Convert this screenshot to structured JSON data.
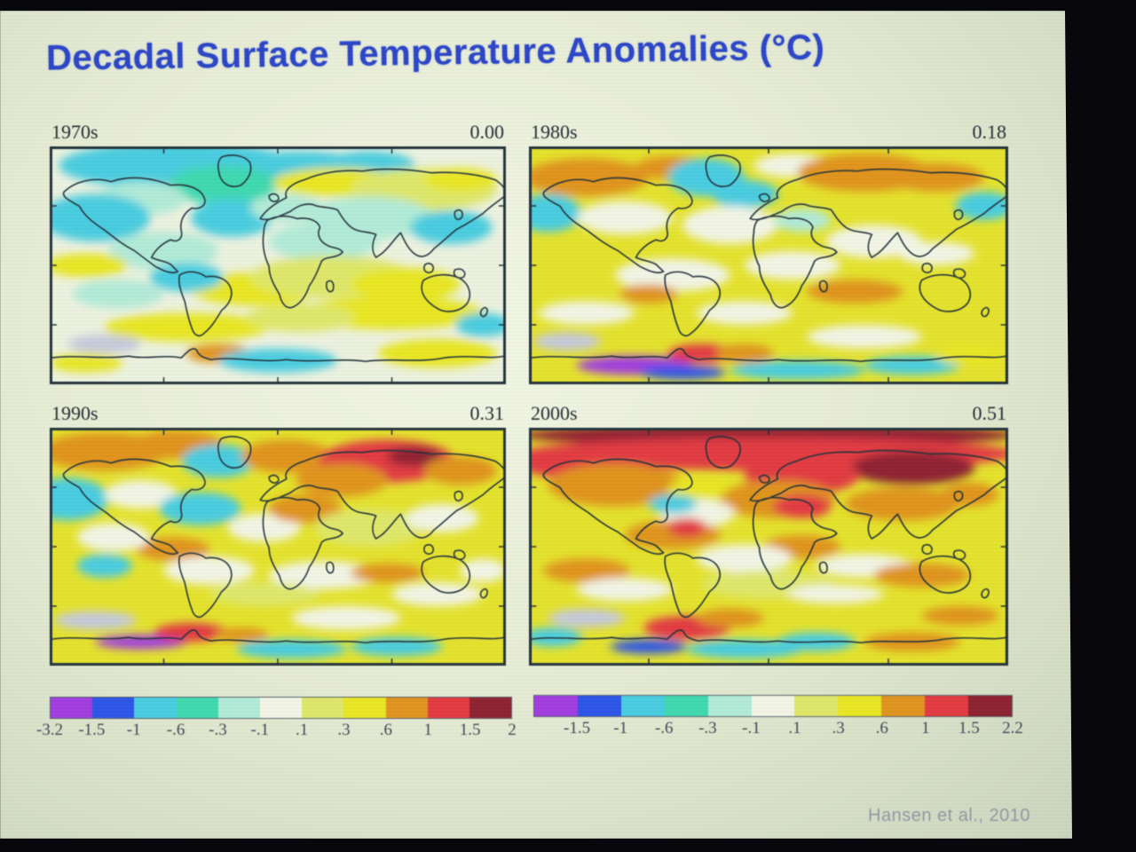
{
  "slide": {
    "title": "Decadal Surface Temperature Anomalies (°C)",
    "citation": "Hansen et al., 2010"
  },
  "chart_data": {
    "type": "heatmap",
    "title": "Decadal Surface Temperature Anomalies (°C)",
    "units": "°C",
    "annotation": "Hansen et al., 2010",
    "layout": "four equirectangular world maps in a 2x2 grid, decade label top-left and decadal-mean anomaly top-right of each map, discrete color scale bars below each column",
    "palette": {
      "purple": "#a13ce0",
      "blue": "#2d55e8",
      "cyan": "#49cde0",
      "teal": "#3fd9b0",
      "ltcyan": "#b2ecd8",
      "white": "#f3f6e6",
      "paleyellow": "#dfe86a",
      "yellow": "#e9e723",
      "orange": "#e0941f",
      "red": "#e23a42",
      "darkred": "#8e2330",
      "gray": "#c6cbdc"
    },
    "maps": [
      {
        "decade_label": "1970s",
        "mean_anomaly": "0.00",
        "base": "#eef3e0",
        "blobs": [
          [
            28,
            8,
            26,
            10,
            "cyan"
          ],
          [
            55,
            10,
            16,
            8,
            "cyan"
          ],
          [
            70,
            8,
            10,
            6,
            "cyan"
          ],
          [
            38,
            16,
            12,
            8,
            "teal"
          ],
          [
            20,
            22,
            10,
            7,
            "ltcyan"
          ],
          [
            10,
            30,
            12,
            10,
            "cyan"
          ],
          [
            40,
            30,
            9,
            8,
            "cyan"
          ],
          [
            52,
            26,
            8,
            6,
            "ltcyan"
          ],
          [
            63,
            15,
            14,
            6,
            "yellow"
          ],
          [
            82,
            18,
            16,
            9,
            "paleyellow"
          ],
          [
            90,
            14,
            8,
            5,
            "yellow"
          ],
          [
            70,
            30,
            14,
            9,
            "ltcyan"
          ],
          [
            88,
            34,
            9,
            7,
            "cyan"
          ],
          [
            60,
            40,
            12,
            8,
            "ltcyan"
          ],
          [
            25,
            44,
            12,
            8,
            "ltcyan"
          ],
          [
            8,
            50,
            9,
            5,
            "yellow"
          ],
          [
            45,
            60,
            14,
            7,
            "yellow"
          ],
          [
            62,
            55,
            18,
            9,
            "paleyellow"
          ],
          [
            78,
            58,
            12,
            7,
            "yellow"
          ],
          [
            30,
            55,
            8,
            6,
            "cyan"
          ],
          [
            15,
            62,
            10,
            6,
            "ltcyan"
          ],
          [
            75,
            70,
            20,
            7,
            "yellow"
          ],
          [
            30,
            76,
            18,
            6,
            "yellow"
          ],
          [
            55,
            72,
            12,
            6,
            "paleyellow"
          ],
          [
            12,
            83,
            8,
            4,
            "gray"
          ],
          [
            37,
            87,
            7,
            4,
            "orange"
          ],
          [
            50,
            90,
            13,
            5,
            "cyan"
          ],
          [
            85,
            87,
            13,
            6,
            "yellow"
          ],
          [
            8,
            91,
            8,
            4,
            "yellow"
          ],
          [
            95,
            75,
            6,
            5,
            "cyan"
          ]
        ]
      },
      {
        "decade_label": "1980s",
        "mean_anomaly": "0.18",
        "base": "#e5e32c",
        "blobs": [
          [
            12,
            13,
            13,
            8,
            "orange"
          ],
          [
            30,
            9,
            8,
            5,
            "orange"
          ],
          [
            37,
            13,
            8,
            8,
            "cyan"
          ],
          [
            45,
            20,
            7,
            6,
            "cyan"
          ],
          [
            55,
            8,
            8,
            5,
            "white"
          ],
          [
            70,
            11,
            14,
            8,
            "orange"
          ],
          [
            85,
            13,
            10,
            6,
            "orange"
          ],
          [
            95,
            25,
            6,
            6,
            "cyan"
          ],
          [
            4,
            28,
            7,
            8,
            "cyan"
          ],
          [
            20,
            30,
            10,
            7,
            "white"
          ],
          [
            42,
            33,
            10,
            8,
            "white"
          ],
          [
            57,
            31,
            6,
            5,
            "ltcyan"
          ],
          [
            72,
            40,
            10,
            7,
            "white"
          ],
          [
            85,
            45,
            8,
            5,
            "white"
          ],
          [
            30,
            54,
            12,
            7,
            "white"
          ],
          [
            55,
            50,
            10,
            6,
            "white"
          ],
          [
            25,
            62,
            6,
            4,
            "orange"
          ],
          [
            68,
            61,
            10,
            5,
            "orange"
          ],
          [
            12,
            70,
            10,
            5,
            "white"
          ],
          [
            45,
            70,
            10,
            5,
            "white"
          ],
          [
            8,
            82,
            7,
            4,
            "gray"
          ],
          [
            22,
            92,
            12,
            4,
            "purple"
          ],
          [
            32,
            95,
            9,
            3,
            "blue"
          ],
          [
            36,
            87,
            7,
            4,
            "red"
          ],
          [
            45,
            87,
            6,
            4,
            "orange"
          ],
          [
            56,
            94,
            14,
            4,
            "cyan"
          ],
          [
            80,
            92,
            10,
            4,
            "cyan"
          ],
          [
            70,
            80,
            12,
            5,
            "white"
          ],
          [
            92,
            88,
            7,
            4,
            "yellow"
          ]
        ]
      },
      {
        "decade_label": "1990s",
        "mean_anomaly": "0.31",
        "base": "#e5e32c",
        "blobs": [
          [
            12,
            10,
            14,
            8,
            "orange"
          ],
          [
            28,
            7,
            10,
            6,
            "orange"
          ],
          [
            37,
            14,
            8,
            7,
            "cyan"
          ],
          [
            52,
            12,
            10,
            7,
            "orange"
          ],
          [
            74,
            14,
            15,
            9,
            "red"
          ],
          [
            80,
            12,
            6,
            4,
            "darkred"
          ],
          [
            90,
            18,
            8,
            6,
            "orange"
          ],
          [
            64,
            22,
            10,
            7,
            "orange"
          ],
          [
            4,
            30,
            9,
            9,
            "cyan"
          ],
          [
            20,
            28,
            8,
            6,
            "white"
          ],
          [
            33,
            34,
            9,
            7,
            "cyan"
          ],
          [
            47,
            42,
            8,
            6,
            "white"
          ],
          [
            56,
            34,
            8,
            6,
            "orange"
          ],
          [
            70,
            42,
            12,
            8,
            "paleyellow"
          ],
          [
            86,
            38,
            8,
            6,
            "white"
          ],
          [
            27,
            51,
            8,
            5,
            "orange"
          ],
          [
            14,
            46,
            8,
            6,
            "white"
          ],
          [
            35,
            60,
            10,
            6,
            "white"
          ],
          [
            60,
            62,
            12,
            6,
            "white"
          ],
          [
            74,
            61,
            8,
            4,
            "orange"
          ],
          [
            12,
            58,
            6,
            5,
            "cyan"
          ],
          [
            47,
            70,
            12,
            5,
            "paleyellow"
          ],
          [
            85,
            70,
            10,
            5,
            "white"
          ],
          [
            10,
            81,
            9,
            4,
            "gray"
          ],
          [
            20,
            90,
            10,
            3,
            "purple"
          ],
          [
            31,
            86,
            8,
            4,
            "red"
          ],
          [
            42,
            87,
            6,
            3,
            "orange"
          ],
          [
            53,
            93,
            12,
            4,
            "cyan"
          ],
          [
            76,
            92,
            10,
            4,
            "cyan"
          ],
          [
            65,
            80,
            12,
            5,
            "white"
          ],
          [
            95,
            60,
            5,
            5,
            "white"
          ]
        ]
      },
      {
        "decade_label": "2000s",
        "mean_anomaly": "0.51",
        "base": "#e5e32c",
        "blobs": [
          [
            50,
            3,
            52,
            5,
            "darkred"
          ],
          [
            50,
            11,
            52,
            7,
            "red"
          ],
          [
            80,
            17,
            13,
            7,
            "darkred"
          ],
          [
            57,
            20,
            12,
            8,
            "red"
          ],
          [
            8,
            15,
            10,
            6,
            "red"
          ],
          [
            18,
            24,
            14,
            9,
            "orange"
          ],
          [
            36,
            26,
            7,
            5,
            "yellow"
          ],
          [
            52,
            30,
            12,
            8,
            "orange"
          ],
          [
            57,
            33,
            6,
            5,
            "red"
          ],
          [
            78,
            32,
            12,
            7,
            "orange"
          ],
          [
            92,
            28,
            6,
            5,
            "orange"
          ],
          [
            35,
            36,
            8,
            6,
            "white"
          ],
          [
            30,
            32,
            5,
            4,
            "cyan"
          ],
          [
            30,
            45,
            10,
            6,
            "orange"
          ],
          [
            33,
            42,
            4,
            4,
            "red"
          ],
          [
            57,
            50,
            8,
            5,
            "orange"
          ],
          [
            45,
            55,
            10,
            6,
            "white"
          ],
          [
            70,
            58,
            10,
            5,
            "white"
          ],
          [
            82,
            62,
            10,
            5,
            "orange"
          ],
          [
            12,
            60,
            9,
            5,
            "orange"
          ],
          [
            20,
            68,
            10,
            5,
            "white"
          ],
          [
            50,
            66,
            14,
            6,
            "paleyellow"
          ],
          [
            64,
            70,
            10,
            4,
            "white"
          ],
          [
            12,
            80,
            8,
            4,
            "gray"
          ],
          [
            33,
            84,
            9,
            5,
            "red"
          ],
          [
            42,
            80,
            7,
            4,
            "orange"
          ],
          [
            25,
            92,
            8,
            3,
            "blue"
          ],
          [
            45,
            93,
            12,
            4,
            "cyan"
          ],
          [
            60,
            90,
            8,
            4,
            "cyan"
          ],
          [
            80,
            90,
            10,
            4,
            "orange"
          ],
          [
            90,
            79,
            8,
            4,
            "orange"
          ],
          [
            5,
            88,
            6,
            4,
            "cyan"
          ]
        ]
      }
    ],
    "colorbars": [
      {
        "side": "left",
        "tick_labels": [
          "-3.2",
          "-1.5",
          "-1",
          "-.6",
          "-.3",
          "-.1",
          ".1",
          ".3",
          ".6",
          "1",
          "1.5",
          "2"
        ],
        "label_positions": [
          0,
          1,
          2,
          3,
          4,
          5,
          6,
          7,
          8,
          9,
          10,
          11
        ],
        "segments": [
          "purple",
          "blue",
          "cyan",
          "teal",
          "ltcyan",
          "white",
          "paleyellow",
          "yellow",
          "orange",
          "red",
          "darkred"
        ]
      },
      {
        "side": "right",
        "tick_labels": [
          "-1.5",
          "-1",
          "-.6",
          "-.3",
          "-.1",
          ".1",
          ".3",
          ".6",
          "1",
          "1.5",
          "2.2"
        ],
        "label_positions": [
          1,
          2,
          3,
          4,
          5,
          6,
          7,
          8,
          9,
          10,
          11
        ],
        "segments": [
          "purple",
          "blue",
          "cyan",
          "teal",
          "ltcyan",
          "white",
          "paleyellow",
          "yellow",
          "orange",
          "red",
          "darkred"
        ]
      }
    ]
  }
}
